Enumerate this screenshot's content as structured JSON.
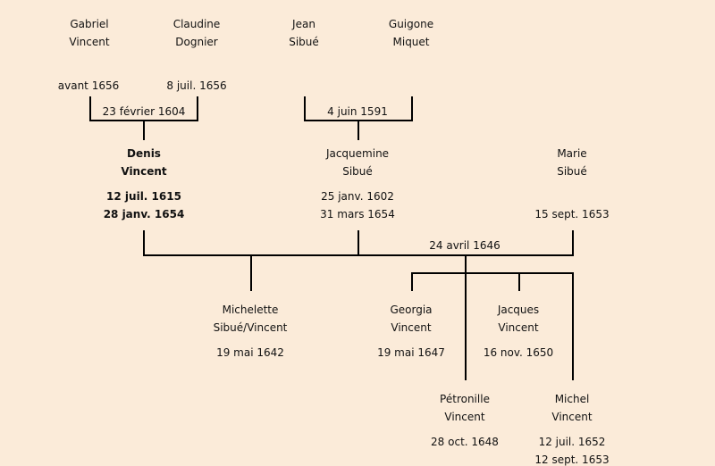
{
  "people": {
    "gabriel": {
      "first": "Gabriel",
      "last": "Vincent",
      "death": "avant 1656"
    },
    "claudine": {
      "first": "Claudine",
      "last": "Dognier",
      "death": "8 juil. 1656"
    },
    "jean": {
      "first": "Jean",
      "last": "Sibué"
    },
    "guigone": {
      "first": "Guigone",
      "last": "Miquet"
    },
    "denis": {
      "first": "Denis",
      "last": "Vincent",
      "birth": "12 juil. 1615",
      "death": "28 janv. 1654"
    },
    "jacquemine": {
      "first": "Jacquemine",
      "last": "Sibué",
      "birth": "25 janv. 1602",
      "death": "31 mars 1654"
    },
    "marie": {
      "first": "Marie",
      "last": "Sibué",
      "death": "15 sept. 1653"
    },
    "michelette": {
      "first": "Michelette",
      "last": "Sibué/Vincent",
      "birth": "19 mai 1642"
    },
    "georgia": {
      "first": "Georgia",
      "last": "Vincent",
      "birth": "19 mai 1647"
    },
    "jacques": {
      "first": "Jacques",
      "last": "Vincent",
      "birth": "16 nov. 1650"
    },
    "petronille": {
      "first": "Pétronille",
      "last": "Vincent",
      "birth": "28 oct. 1648"
    },
    "michel": {
      "first": "Michel",
      "last": "Vincent",
      "birth": "12 juil. 1652",
      "death": "12 sept. 1653"
    }
  },
  "marriages": {
    "gabriel_claudine": "23 février 1604",
    "jean_guigone": "4 juin 1591",
    "denis_marie": "24 avril 1646"
  },
  "colors": {
    "background": "#fbebd9",
    "lines": "#000000",
    "text": "#111111"
  }
}
